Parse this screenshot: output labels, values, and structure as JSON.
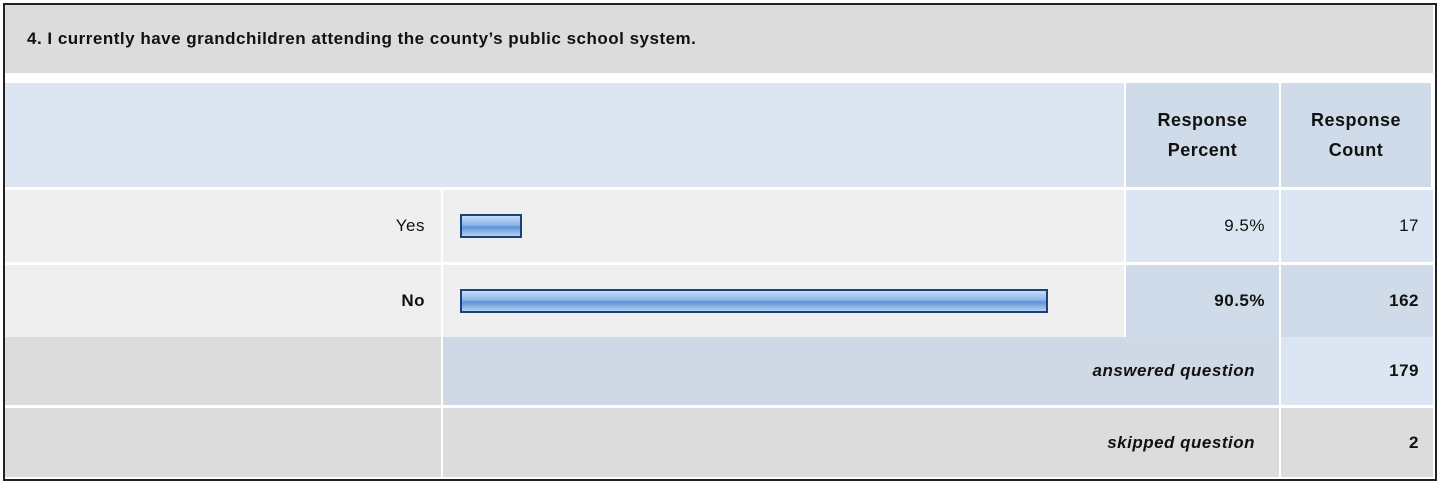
{
  "chart_data": {
    "type": "bar",
    "title": "4. I currently have grandchildren attending the county’s public school system.",
    "column_headers": [
      "Response Percent",
      "Response Count"
    ],
    "categories": [
      "Yes",
      "No"
    ],
    "values": [
      9.5,
      90.5
    ],
    "value_labels": [
      "9.5%",
      "90.5%"
    ],
    "counts": [
      17,
      162
    ],
    "color": "#8ab6ea",
    "summary": [
      {
        "label": "answered question",
        "count": 179
      },
      {
        "label": "skipped question",
        "count": 2
      }
    ]
  }
}
